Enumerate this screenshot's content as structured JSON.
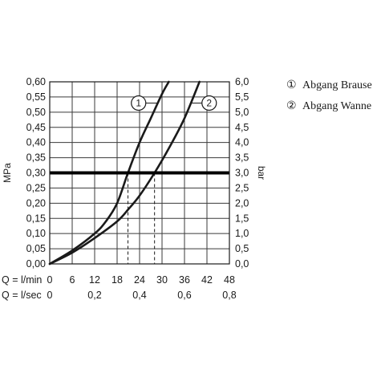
{
  "chart_data": {
    "type": "line",
    "title": "",
    "y_left_label": "MPa",
    "y_right_label": "bar",
    "x_row_labels": [
      "Q = l/min",
      "Q = l/sec"
    ],
    "ylim": [
      0,
      0.6
    ],
    "xlim": [
      0,
      48
    ],
    "y_left_ticks": [
      "0,00",
      "0,05",
      "0,10",
      "0,15",
      "0,20",
      "0,25",
      "0,30",
      "0,35",
      "0,40",
      "0,45",
      "0,50",
      "0,55",
      "0,60"
    ],
    "y_right_ticks": [
      "0,0",
      "0,5",
      "1,0",
      "1,5",
      "2,0",
      "2,5",
      "3,0",
      "3,5",
      "4,0",
      "4,5",
      "5,0",
      "5,5",
      "6,0"
    ],
    "x_ticks_lmin": [
      "0",
      "6",
      "12",
      "18",
      "24",
      "30",
      "36",
      "42",
      "48"
    ],
    "x_ticks_lsec": [
      "0",
      "0,2",
      "0,4",
      "0,6",
      "0,8"
    ],
    "x_ticks_lsec_values": [
      0,
      12,
      24,
      36,
      48
    ],
    "grid": true,
    "reference_line": {
      "y": 0.3
    },
    "drop_lines_x": [
      20.9,
      28.0
    ],
    "series": [
      {
        "name": "1",
        "x": [
          0,
          6,
          12,
          15,
          18,
          20.9,
          24,
          27,
          30,
          31.8
        ],
        "y": [
          0,
          0.044,
          0.1,
          0.14,
          0.2,
          0.3,
          0.4,
          0.48,
          0.56,
          0.6
        ]
      },
      {
        "name": "2",
        "x": [
          0,
          6,
          12,
          18,
          21,
          24,
          28,
          32,
          36,
          40.0
        ],
        "y": [
          0,
          0.037,
          0.085,
          0.14,
          0.18,
          0.225,
          0.3,
          0.385,
          0.48,
          0.6
        ]
      }
    ],
    "legend": [
      {
        "marker": "①",
        "label": "Abgang Brause"
      },
      {
        "marker": "②",
        "label": "Abgang Wanne"
      }
    ],
    "curve_markers": [
      "1",
      "2"
    ],
    "legend_placement": "right"
  }
}
